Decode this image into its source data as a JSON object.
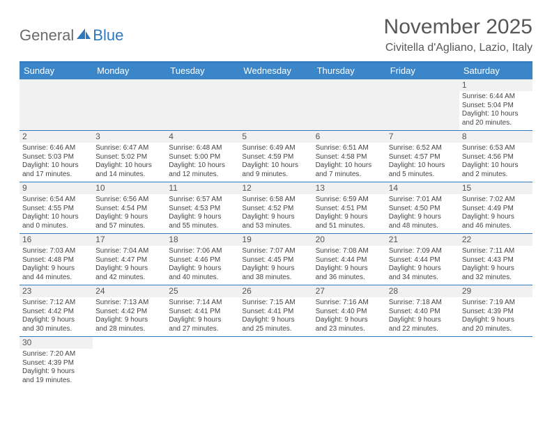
{
  "logo": {
    "part1": "General",
    "part2": "Blue"
  },
  "title": "November 2025",
  "location": "Civitella d'Agliano, Lazio, Italy",
  "dow": [
    "Sunday",
    "Monday",
    "Tuesday",
    "Wednesday",
    "Thursday",
    "Friday",
    "Saturday"
  ],
  "colors": {
    "header_bar": "#3b86c9",
    "rule": "#2f78bf",
    "lead_bg": "#f1f1f1",
    "text": "#444444",
    "title_text": "#575757"
  },
  "typography": {
    "title_fontsize": 30,
    "location_fontsize": 16,
    "dow_fontsize": 13,
    "daynum_fontsize": 12,
    "body_fontsize": 10
  },
  "layout": {
    "columns": 7,
    "leading_blanks": 6,
    "trailing_blanks": 6
  },
  "days": [
    {
      "n": "1",
      "sunrise": "Sunrise: 6:44 AM",
      "sunset": "Sunset: 5:04 PM",
      "d1": "Daylight: 10 hours",
      "d2": "and 20 minutes."
    },
    {
      "n": "2",
      "sunrise": "Sunrise: 6:46 AM",
      "sunset": "Sunset: 5:03 PM",
      "d1": "Daylight: 10 hours",
      "d2": "and 17 minutes."
    },
    {
      "n": "3",
      "sunrise": "Sunrise: 6:47 AM",
      "sunset": "Sunset: 5:02 PM",
      "d1": "Daylight: 10 hours",
      "d2": "and 14 minutes."
    },
    {
      "n": "4",
      "sunrise": "Sunrise: 6:48 AM",
      "sunset": "Sunset: 5:00 PM",
      "d1": "Daylight: 10 hours",
      "d2": "and 12 minutes."
    },
    {
      "n": "5",
      "sunrise": "Sunrise: 6:49 AM",
      "sunset": "Sunset: 4:59 PM",
      "d1": "Daylight: 10 hours",
      "d2": "and 9 minutes."
    },
    {
      "n": "6",
      "sunrise": "Sunrise: 6:51 AM",
      "sunset": "Sunset: 4:58 PM",
      "d1": "Daylight: 10 hours",
      "d2": "and 7 minutes."
    },
    {
      "n": "7",
      "sunrise": "Sunrise: 6:52 AM",
      "sunset": "Sunset: 4:57 PM",
      "d1": "Daylight: 10 hours",
      "d2": "and 5 minutes."
    },
    {
      "n": "8",
      "sunrise": "Sunrise: 6:53 AM",
      "sunset": "Sunset: 4:56 PM",
      "d1": "Daylight: 10 hours",
      "d2": "and 2 minutes."
    },
    {
      "n": "9",
      "sunrise": "Sunrise: 6:54 AM",
      "sunset": "Sunset: 4:55 PM",
      "d1": "Daylight: 10 hours",
      "d2": "and 0 minutes."
    },
    {
      "n": "10",
      "sunrise": "Sunrise: 6:56 AM",
      "sunset": "Sunset: 4:54 PM",
      "d1": "Daylight: 9 hours",
      "d2": "and 57 minutes."
    },
    {
      "n": "11",
      "sunrise": "Sunrise: 6:57 AM",
      "sunset": "Sunset: 4:53 PM",
      "d1": "Daylight: 9 hours",
      "d2": "and 55 minutes."
    },
    {
      "n": "12",
      "sunrise": "Sunrise: 6:58 AM",
      "sunset": "Sunset: 4:52 PM",
      "d1": "Daylight: 9 hours",
      "d2": "and 53 minutes."
    },
    {
      "n": "13",
      "sunrise": "Sunrise: 6:59 AM",
      "sunset": "Sunset: 4:51 PM",
      "d1": "Daylight: 9 hours",
      "d2": "and 51 minutes."
    },
    {
      "n": "14",
      "sunrise": "Sunrise: 7:01 AM",
      "sunset": "Sunset: 4:50 PM",
      "d1": "Daylight: 9 hours",
      "d2": "and 48 minutes."
    },
    {
      "n": "15",
      "sunrise": "Sunrise: 7:02 AM",
      "sunset": "Sunset: 4:49 PM",
      "d1": "Daylight: 9 hours",
      "d2": "and 46 minutes."
    },
    {
      "n": "16",
      "sunrise": "Sunrise: 7:03 AM",
      "sunset": "Sunset: 4:48 PM",
      "d1": "Daylight: 9 hours",
      "d2": "and 44 minutes."
    },
    {
      "n": "17",
      "sunrise": "Sunrise: 7:04 AM",
      "sunset": "Sunset: 4:47 PM",
      "d1": "Daylight: 9 hours",
      "d2": "and 42 minutes."
    },
    {
      "n": "18",
      "sunrise": "Sunrise: 7:06 AM",
      "sunset": "Sunset: 4:46 PM",
      "d1": "Daylight: 9 hours",
      "d2": "and 40 minutes."
    },
    {
      "n": "19",
      "sunrise": "Sunrise: 7:07 AM",
      "sunset": "Sunset: 4:45 PM",
      "d1": "Daylight: 9 hours",
      "d2": "and 38 minutes."
    },
    {
      "n": "20",
      "sunrise": "Sunrise: 7:08 AM",
      "sunset": "Sunset: 4:44 PM",
      "d1": "Daylight: 9 hours",
      "d2": "and 36 minutes."
    },
    {
      "n": "21",
      "sunrise": "Sunrise: 7:09 AM",
      "sunset": "Sunset: 4:44 PM",
      "d1": "Daylight: 9 hours",
      "d2": "and 34 minutes."
    },
    {
      "n": "22",
      "sunrise": "Sunrise: 7:11 AM",
      "sunset": "Sunset: 4:43 PM",
      "d1": "Daylight: 9 hours",
      "d2": "and 32 minutes."
    },
    {
      "n": "23",
      "sunrise": "Sunrise: 7:12 AM",
      "sunset": "Sunset: 4:42 PM",
      "d1": "Daylight: 9 hours",
      "d2": "and 30 minutes."
    },
    {
      "n": "24",
      "sunrise": "Sunrise: 7:13 AM",
      "sunset": "Sunset: 4:42 PM",
      "d1": "Daylight: 9 hours",
      "d2": "and 28 minutes."
    },
    {
      "n": "25",
      "sunrise": "Sunrise: 7:14 AM",
      "sunset": "Sunset: 4:41 PM",
      "d1": "Daylight: 9 hours",
      "d2": "and 27 minutes."
    },
    {
      "n": "26",
      "sunrise": "Sunrise: 7:15 AM",
      "sunset": "Sunset: 4:41 PM",
      "d1": "Daylight: 9 hours",
      "d2": "and 25 minutes."
    },
    {
      "n": "27",
      "sunrise": "Sunrise: 7:16 AM",
      "sunset": "Sunset: 4:40 PM",
      "d1": "Daylight: 9 hours",
      "d2": "and 23 minutes."
    },
    {
      "n": "28",
      "sunrise": "Sunrise: 7:18 AM",
      "sunset": "Sunset: 4:40 PM",
      "d1": "Daylight: 9 hours",
      "d2": "and 22 minutes."
    },
    {
      "n": "29",
      "sunrise": "Sunrise: 7:19 AM",
      "sunset": "Sunset: 4:39 PM",
      "d1": "Daylight: 9 hours",
      "d2": "and 20 minutes."
    },
    {
      "n": "30",
      "sunrise": "Sunrise: 7:20 AM",
      "sunset": "Sunset: 4:39 PM",
      "d1": "Daylight: 9 hours",
      "d2": "and 19 minutes."
    }
  ]
}
